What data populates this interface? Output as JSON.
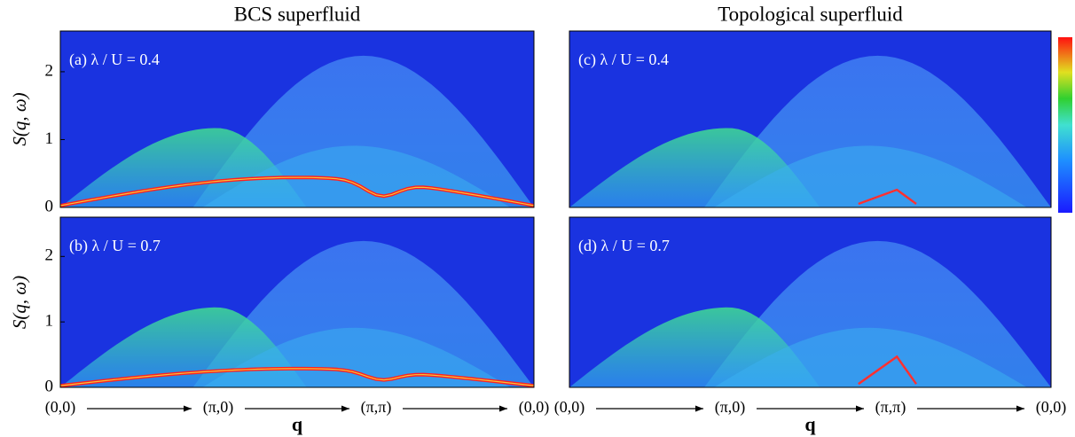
{
  "chart_data": [
    {
      "type": "heatmap",
      "title": "BCS superfluid",
      "label": "(a) λ / U = 0.4",
      "ylabel": "S(q, ω)",
      "ylim": [
        0,
        2.6
      ],
      "yticks": [
        0,
        1,
        2
      ]
    },
    {
      "type": "heatmap",
      "label": "(b) λ / U = 0.7",
      "ylabel": "S(q, ω)",
      "ylim": [
        0,
        2.6
      ],
      "yticks": [
        0,
        1,
        2
      ],
      "categories": [
        "(0,0)",
        "(π,0)",
        "(π,π)",
        "(0,0)"
      ],
      "xlabel": "q"
    },
    {
      "type": "heatmap",
      "title": "Topological superfluid",
      "label": "(c) λ / U = 0.4"
    },
    {
      "type": "heatmap",
      "label": "(d) λ / U = 0.7",
      "categories": [
        "(0,0)",
        "(π,0)",
        "(π,π)",
        "(0,0)"
      ],
      "xlabel": "q"
    }
  ]
}
